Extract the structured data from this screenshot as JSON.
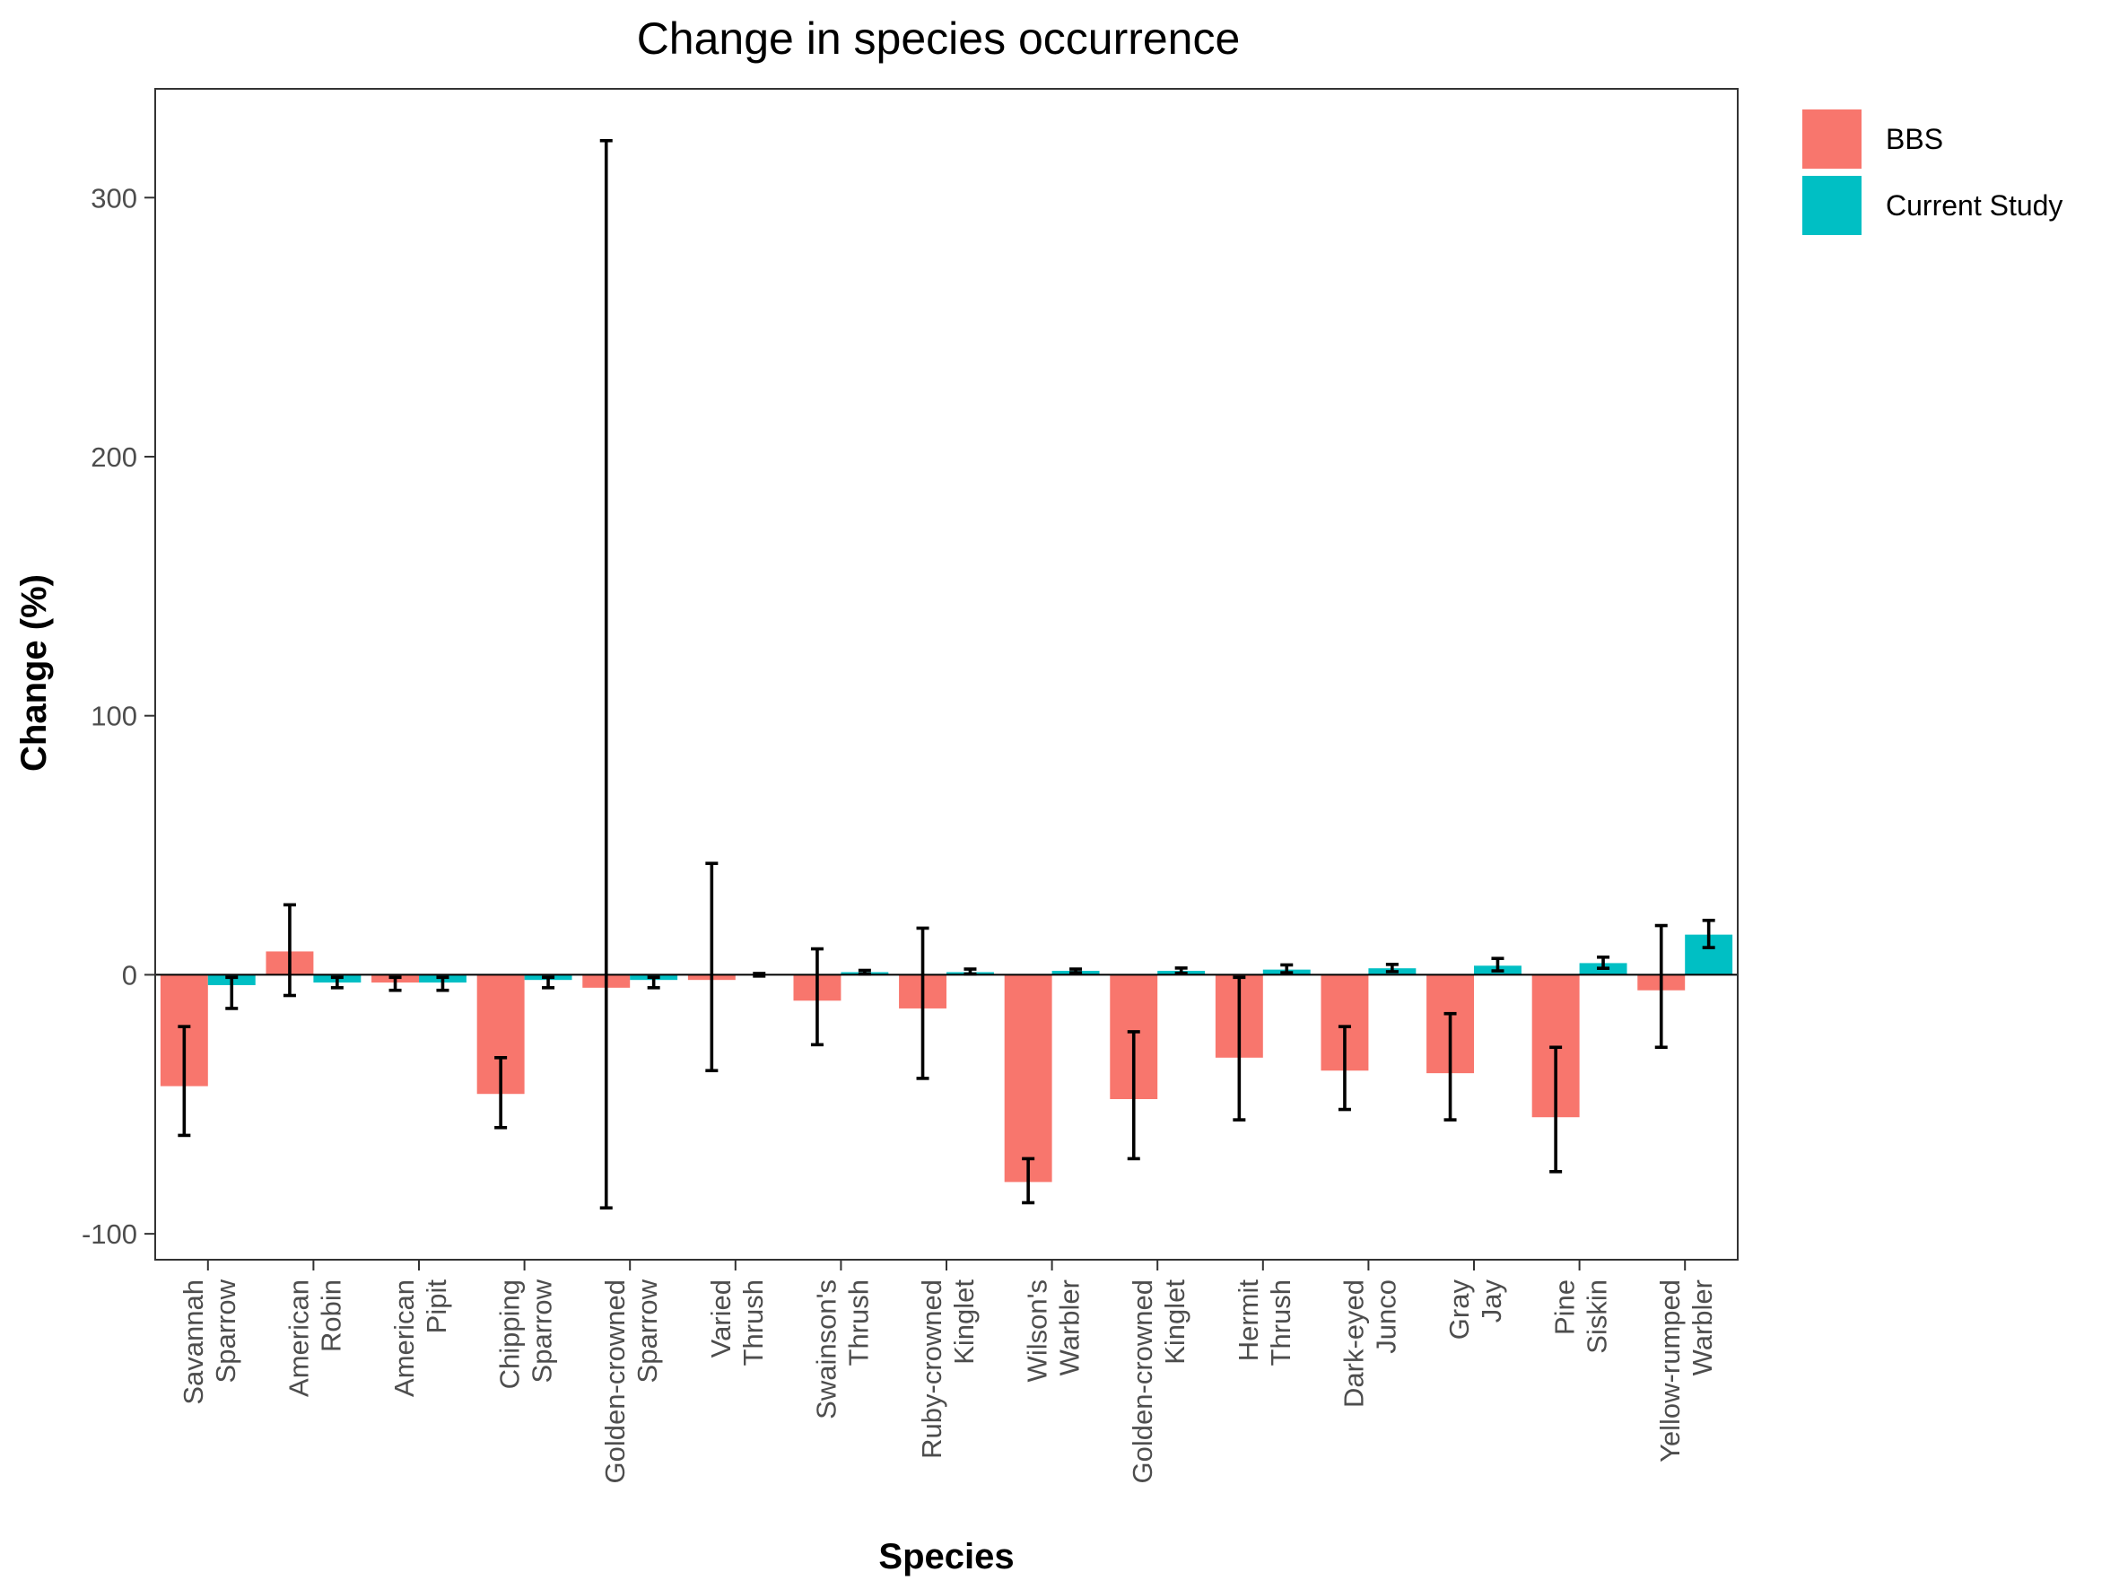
{
  "chart_data": {
    "type": "bar",
    "title": "Change in species occurrence",
    "xlabel": "Species",
    "ylabel": "Change (%)",
    "ylim": [
      -110,
      342
    ],
    "yticks": [
      -100,
      0,
      100,
      200,
      300
    ],
    "grid": false,
    "legend_position": "right",
    "categories": [
      [
        "Savannah",
        "Sparrow"
      ],
      [
        "American",
        "Robin"
      ],
      [
        "American",
        "Pipit"
      ],
      [
        "Chipping",
        "Sparrow"
      ],
      [
        "Golden-crowned",
        "Sparrow"
      ],
      [
        "Varied",
        "Thrush"
      ],
      [
        "Swainson's",
        "Thrush"
      ],
      [
        "Ruby-crowned",
        "Kinglet"
      ],
      [
        "Wilson's",
        "Warbler"
      ],
      [
        "Golden-crowned",
        "Kinglet"
      ],
      [
        "Hermit",
        "Thrush"
      ],
      [
        "Dark-eyed",
        "Junco"
      ],
      [
        "Gray",
        "Jay"
      ],
      [
        "Pine",
        "Siskin"
      ],
      [
        "Yellow-rumped",
        "Warbler"
      ]
    ],
    "series": [
      {
        "name": "BBS",
        "color": "#F8766D",
        "values": [
          -43,
          9,
          -3,
          -46,
          -5,
          -2,
          -10,
          -13,
          -80,
          -48,
          -32,
          -37,
          -38,
          -55,
          -6
        ],
        "error_low": [
          -62,
          -8,
          -6,
          -59,
          -90,
          -37,
          -27,
          -40,
          -88,
          -71,
          -56,
          -52,
          -56,
          -76,
          -28
        ],
        "error_high": [
          -20,
          27,
          -1,
          -32,
          322,
          43,
          10,
          18,
          -71,
          -22,
          -1,
          -20,
          -15,
          -28,
          19
        ]
      },
      {
        "name": "Current Study",
        "color": "#00BFC4",
        "values": [
          -4,
          -3,
          -3,
          -2,
          -2,
          0,
          1,
          1,
          1.5,
          1.5,
          2,
          2.5,
          3.5,
          4.5,
          15.5
        ],
        "error_low": [
          -13,
          -5,
          -6,
          -5,
          -5,
          -0.5,
          0.3,
          0.3,
          0.8,
          0.6,
          0.8,
          1.2,
          1.5,
          2.5,
          10.5
        ],
        "error_high": [
          -1,
          -1,
          -1,
          -1,
          -1,
          0.5,
          1.7,
          2.2,
          2.2,
          2.6,
          3.8,
          4,
          6.3,
          6.8,
          21
        ]
      }
    ]
  }
}
